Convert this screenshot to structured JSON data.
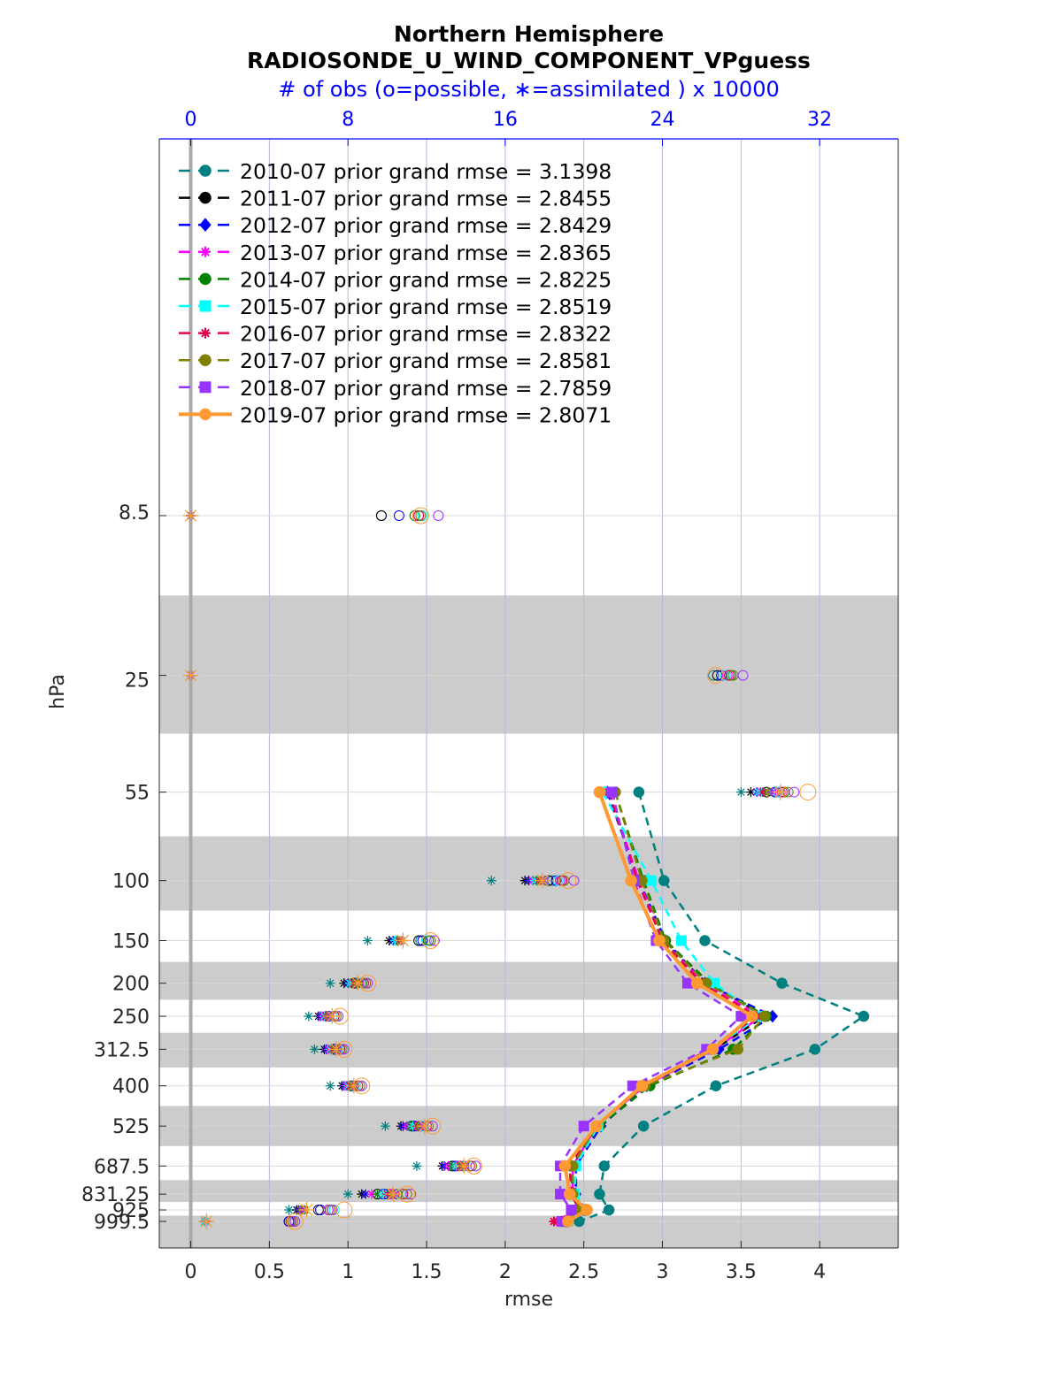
{
  "header": {
    "title_line1": "Northern Hemisphere",
    "title_line2": "RADIOSONDE_U_WIND_COMPONENT_VPguess",
    "title_line3": "# of obs (o=possible, ∗=assimilated ) x 10000"
  },
  "chart_data": {
    "type": "line",
    "xlabel": "rmse",
    "ylabel": "hPa",
    "xlim": [
      -0.2,
      4.5
    ],
    "x_ticks": [
      0,
      0.5,
      1,
      1.5,
      2,
      2.5,
      3,
      3.5,
      4
    ],
    "x_tick_labels": [
      "0",
      "0.5",
      "1",
      "1.5",
      "2",
      "2.5",
      "3",
      "3.5",
      "4"
    ],
    "top_axis": {
      "label": "# of obs (o=possible, ∗=assimilated ) x 10000",
      "ticks": [
        0,
        8,
        16,
        24,
        32
      ],
      "tick_labels": [
        "0",
        "8",
        "16",
        "24",
        "32"
      ],
      "color": "#0000ff"
    },
    "y_scale": "log",
    "y_reversed": true,
    "y_ticks": [
      8.5,
      25,
      55,
      100,
      150,
      200,
      250,
      312.5,
      400,
      525,
      687.5,
      831.25,
      925,
      999.5
    ],
    "y_tick_labels": [
      "8.5",
      "25",
      "55",
      "100",
      "150",
      "200",
      "250",
      "312.5",
      "400",
      "525",
      "687.5",
      "831.25",
      "925",
      "999.5"
    ],
    "grid": true,
    "legend_position": "top-left",
    "levels": [
      55,
      100,
      150,
      200,
      250,
      312.5,
      400,
      525,
      687.5,
      831.25,
      925,
      999.5
    ],
    "series": [
      {
        "name": "2010-07 prior grand rmse = 3.1398",
        "color": "#008080",
        "marker": "circle",
        "style": "dashed",
        "values": [
          2.85,
          3.01,
          3.27,
          3.76,
          4.28,
          3.97,
          3.34,
          2.88,
          2.63,
          2.6,
          2.66,
          2.47
        ]
      },
      {
        "name": "2011-07 prior grand rmse = 2.8455",
        "color": "#000000",
        "marker": "octagon",
        "style": "dashed",
        "values": [
          2.65,
          2.85,
          3.0,
          3.28,
          3.65,
          3.33,
          2.89,
          2.59,
          2.42,
          2.44,
          2.5,
          2.38
        ]
      },
      {
        "name": "2012-07 prior grand rmse = 2.8429",
        "color": "#0000ff",
        "marker": "diamond",
        "style": "dashed",
        "values": [
          2.65,
          2.85,
          3.02,
          3.27,
          3.7,
          3.36,
          2.9,
          2.61,
          2.45,
          2.45,
          2.51,
          2.39
        ]
      },
      {
        "name": "2013-07 prior grand rmse = 2.8365",
        "color": "#ff00ff",
        "marker": "star",
        "style": "dashed",
        "values": [
          2.66,
          2.85,
          3.0,
          3.27,
          3.63,
          3.33,
          2.89,
          2.58,
          2.43,
          2.43,
          2.48,
          2.34
        ]
      },
      {
        "name": "2014-07 prior grand rmse = 2.8225",
        "color": "#008000",
        "marker": "octagon",
        "style": "dashed",
        "values": [
          2.7,
          2.88,
          3.02,
          3.3,
          3.66,
          3.45,
          2.92,
          2.6,
          2.42,
          2.43,
          2.49,
          2.36
        ]
      },
      {
        "name": "2015-07 prior grand rmse = 2.8519",
        "color": "#00ffff",
        "marker": "square",
        "style": "dashed",
        "values": [
          2.62,
          2.93,
          3.12,
          3.33,
          3.62,
          3.31,
          2.88,
          2.59,
          2.45,
          2.44,
          2.5,
          2.4
        ]
      },
      {
        "name": "2016-07 prior grand rmse = 2.8322",
        "color": "#e6004c",
        "marker": "star",
        "style": "dashed",
        "values": [
          2.66,
          2.84,
          3.0,
          3.25,
          3.6,
          3.3,
          2.87,
          2.58,
          2.41,
          2.42,
          2.47,
          2.31
        ]
      },
      {
        "name": "2017-07 prior grand rmse = 2.8581",
        "color": "#808000",
        "marker": "circle",
        "style": "dashed",
        "values": [
          2.7,
          2.87,
          3.01,
          3.28,
          3.65,
          3.48,
          2.89,
          2.58,
          2.43,
          2.43,
          2.48,
          2.36
        ]
      },
      {
        "name": "2018-07 prior grand rmse = 2.7859",
        "color": "#9933ff",
        "marker": "square",
        "style": "dashed",
        "values": [
          2.68,
          2.82,
          2.96,
          3.16,
          3.5,
          3.28,
          2.81,
          2.5,
          2.35,
          2.35,
          2.42,
          2.36
        ]
      },
      {
        "name": "2019-07 prior grand rmse = 2.8071",
        "color": "#ff9933",
        "marker": "circle",
        "style": "solid",
        "values": [
          2.6,
          2.8,
          2.98,
          3.22,
          3.57,
          3.32,
          2.87,
          2.58,
          2.38,
          2.41,
          2.52,
          2.4
        ]
      }
    ],
    "obs_counts": {
      "note": "counts in units of 10000 (top axis); o=possible, ∗=assimilated",
      "levels": [
        8.5,
        25,
        55,
        100,
        150,
        200,
        250,
        312.5,
        400,
        525,
        687.5,
        831.25,
        925,
        999.5
      ],
      "possible": [
        [
          9.7,
          26.6,
          29.7,
          18.4,
          11.7,
          8.4,
          6.9,
          7.3,
          8.2,
          11.2,
          13.4,
          10.0,
          7.0,
          5.1
        ],
        [
          9.7,
          26.8,
          29.3,
          18.2,
          11.6,
          8.3,
          7.0,
          7.3,
          8.1,
          11.3,
          13.3,
          9.5,
          6.5,
          5.0
        ],
        [
          10.6,
          27.0,
          29.8,
          18.6,
          11.8,
          8.5,
          7.0,
          7.4,
          8.2,
          11.4,
          13.5,
          9.8,
          6.6,
          5.0
        ],
        [
          11.6,
          27.3,
          30.0,
          18.8,
          12.0,
          8.6,
          7.2,
          7.5,
          8.3,
          11.6,
          13.7,
          10.2,
          7.0,
          5.1
        ],
        [
          11.4,
          27.5,
          30.2,
          18.9,
          12.1,
          8.7,
          7.3,
          7.6,
          8.3,
          11.7,
          13.9,
          10.5,
          7.2,
          5.1
        ],
        [
          11.8,
          27.2,
          29.9,
          18.7,
          12.0,
          8.6,
          7.2,
          7.5,
          8.4,
          11.8,
          14.0,
          10.7,
          7.3,
          5.1
        ],
        [
          11.6,
          27.4,
          30.1,
          18.9,
          12.2,
          8.8,
          7.3,
          7.6,
          8.5,
          12.0,
          14.2,
          10.8,
          7.2,
          5.1
        ],
        [
          11.7,
          27.6,
          30.4,
          19.0,
          12.2,
          8.9,
          7.4,
          7.7,
          8.6,
          12.1,
          14.3,
          11.0,
          7.1,
          5.2
        ],
        [
          12.6,
          28.1,
          30.7,
          19.5,
          12.4,
          9.0,
          7.5,
          7.8,
          8.7,
          12.3,
          14.5,
          11.2,
          7.2,
          5.3
        ],
        [
          11.7,
          26.7,
          31.4,
          19.2,
          12.2,
          9.0,
          7.6,
          7.8,
          8.7,
          12.3,
          14.4,
          11.0,
          7.8,
          5.3
        ]
      ],
      "assimilated": [
        [
          0.0,
          0.0,
          28.0,
          15.3,
          9.0,
          7.1,
          6.0,
          6.3,
          7.1,
          9.9,
          11.5,
          8.0,
          5.0,
          0.7
        ],
        [
          0.0,
          0.0,
          28.5,
          17.0,
          10.1,
          7.8,
          6.5,
          6.8,
          7.7,
          10.7,
          12.8,
          8.7,
          5.4,
          0.7
        ],
        [
          0.0,
          0.0,
          28.8,
          17.2,
          10.3,
          8.0,
          6.6,
          6.9,
          7.8,
          10.8,
          12.9,
          8.9,
          5.5,
          0.7
        ],
        [
          0.0,
          0.0,
          29.0,
          17.4,
          10.4,
          8.1,
          6.7,
          7.0,
          7.9,
          11.0,
          13.1,
          9.2,
          5.6,
          0.7
        ],
        [
          0.0,
          0.0,
          29.2,
          17.6,
          10.5,
          8.2,
          6.8,
          7.1,
          8.0,
          11.2,
          13.3,
          9.5,
          5.8,
          0.8
        ],
        [
          0.0,
          0.0,
          28.9,
          17.5,
          10.4,
          8.1,
          6.8,
          7.1,
          8.0,
          11.3,
          13.5,
          9.8,
          5.9,
          0.7
        ],
        [
          0.0,
          0.0,
          29.1,
          17.7,
          10.6,
          8.3,
          6.9,
          7.2,
          8.1,
          11.5,
          13.7,
          10.0,
          5.7,
          0.8
        ],
        [
          0.0,
          0.0,
          29.4,
          17.8,
          10.7,
          8.4,
          7.0,
          7.3,
          8.2,
          11.6,
          13.8,
          10.2,
          5.6,
          0.8
        ],
        [
          0.0,
          0.0,
          29.6,
          18.0,
          10.8,
          8.5,
          7.1,
          7.4,
          8.3,
          11.8,
          14.0,
          10.4,
          5.7,
          0.8
        ],
        [
          0.0,
          0.0,
          30.0,
          17.9,
          10.8,
          8.5,
          7.2,
          7.4,
          8.3,
          11.9,
          13.9,
          10.3,
          5.9,
          0.8
        ]
      ]
    }
  }
}
